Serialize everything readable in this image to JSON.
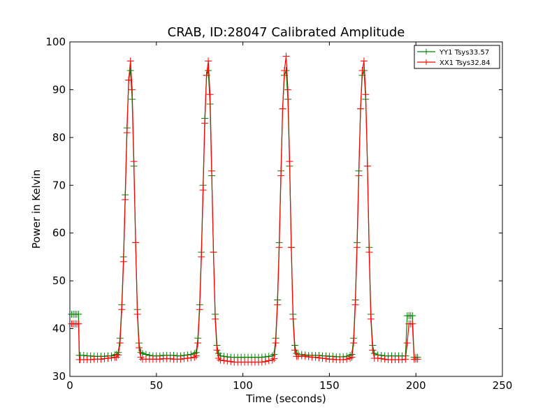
{
  "chart_data": {
    "type": "line",
    "title": "CRAB, ID:28047 Calibrated Amplitude",
    "xlabel": "Time (seconds)",
    "ylabel": "Power in Kelvin",
    "xlim": [
      0,
      250
    ],
    "ylim": [
      30,
      100
    ],
    "xticks": [
      0,
      50,
      100,
      150,
      200,
      250
    ],
    "yticks": [
      30,
      40,
      50,
      60,
      70,
      80,
      90,
      100
    ],
    "grid": false,
    "legend_position": "top-right",
    "marker": "plus",
    "series": [
      {
        "name": "YY1 Tsys33.57",
        "color": "#008000",
        "points": [
          [
            1,
            43
          ],
          [
            2,
            43
          ],
          [
            3,
            43
          ],
          [
            4,
            43
          ],
          [
            5,
            43
          ],
          [
            5.5,
            34.4
          ],
          [
            6,
            34.4
          ],
          [
            8,
            34.4
          ],
          [
            10,
            34.3
          ],
          [
            12,
            34.3
          ],
          [
            14,
            34.2
          ],
          [
            16,
            34.2
          ],
          [
            18,
            34.2
          ],
          [
            20,
            34.2
          ],
          [
            22,
            34.3
          ],
          [
            24,
            34.3
          ],
          [
            26,
            34.5
          ],
          [
            27,
            34.6
          ],
          [
            28,
            35
          ],
          [
            29,
            38
          ],
          [
            30,
            45
          ],
          [
            31,
            55
          ],
          [
            32,
            68
          ],
          [
            33,
            82
          ],
          [
            34,
            92
          ],
          [
            35,
            94
          ],
          [
            36,
            88
          ],
          [
            37,
            74
          ],
          [
            38,
            58
          ],
          [
            39,
            44
          ],
          [
            40,
            37
          ],
          [
            41,
            35
          ],
          [
            42,
            34.8
          ],
          [
            44,
            34.6
          ],
          [
            46,
            34.4
          ],
          [
            48,
            34.3
          ],
          [
            50,
            34.3
          ],
          [
            52,
            34.3
          ],
          [
            54,
            34.4
          ],
          [
            56,
            34.4
          ],
          [
            58,
            34.4
          ],
          [
            60,
            34.4
          ],
          [
            62,
            34.3
          ],
          [
            64,
            34.3
          ],
          [
            66,
            34.4
          ],
          [
            68,
            34.5
          ],
          [
            70,
            34.6
          ],
          [
            72,
            34.8
          ],
          [
            73,
            35
          ],
          [
            74,
            38
          ],
          [
            75,
            45
          ],
          [
            76,
            56
          ],
          [
            77,
            70
          ],
          [
            78,
            84
          ],
          [
            79,
            93
          ],
          [
            80,
            94
          ],
          [
            81,
            87
          ],
          [
            82,
            72
          ],
          [
            83,
            56
          ],
          [
            84,
            43
          ],
          [
            85,
            36.5
          ],
          [
            86,
            34.8
          ],
          [
            87,
            34.3
          ],
          [
            89,
            34.2
          ],
          [
            91,
            34.1
          ],
          [
            93,
            34.0
          ],
          [
            95,
            34.0
          ],
          [
            97,
            34.0
          ],
          [
            99,
            34.0
          ],
          [
            101,
            34.0
          ],
          [
            103,
            34.0
          ],
          [
            105,
            34.0
          ],
          [
            107,
            34.0
          ],
          [
            109,
            34.0
          ],
          [
            111,
            34.0
          ],
          [
            113,
            34.1
          ],
          [
            115,
            34.2
          ],
          [
            117,
            34.3
          ],
          [
            118,
            34.6
          ],
          [
            119,
            38
          ],
          [
            120,
            46
          ],
          [
            121,
            58
          ],
          [
            122,
            73
          ],
          [
            123,
            86
          ],
          [
            124,
            93
          ],
          [
            125,
            94
          ],
          [
            126,
            88
          ],
          [
            127,
            74
          ],
          [
            128,
            57
          ],
          [
            129,
            43
          ],
          [
            130,
            36.5
          ],
          [
            131,
            34.8
          ],
          [
            132,
            34.6
          ],
          [
            134,
            34.6
          ],
          [
            136,
            34.5
          ],
          [
            138,
            34.4
          ],
          [
            140,
            34.4
          ],
          [
            142,
            34.4
          ],
          [
            144,
            34.4
          ],
          [
            146,
            34.3
          ],
          [
            148,
            34.3
          ],
          [
            150,
            34.2
          ],
          [
            152,
            34.2
          ],
          [
            154,
            34.1
          ],
          [
            156,
            34.1
          ],
          [
            158,
            34.1
          ],
          [
            160,
            34.2
          ],
          [
            162,
            34.4
          ],
          [
            163,
            34.6
          ],
          [
            164,
            38
          ],
          [
            165,
            46
          ],
          [
            166,
            58
          ],
          [
            167,
            73
          ],
          [
            168,
            86
          ],
          [
            169,
            93
          ],
          [
            170,
            94
          ],
          [
            171,
            88
          ],
          [
            172,
            74
          ],
          [
            173,
            57
          ],
          [
            174,
            43
          ],
          [
            175,
            36.5
          ],
          [
            176,
            34.8
          ],
          [
            178,
            34.5
          ],
          [
            180,
            34.4
          ],
          [
            182,
            34.3
          ],
          [
            184,
            34.3
          ],
          [
            186,
            34.3
          ],
          [
            188,
            34.3
          ],
          [
            190,
            34.3
          ],
          [
            192,
            34.3
          ],
          [
            194,
            34.3
          ],
          [
            195,
            42.7
          ],
          [
            196,
            42.7
          ],
          [
            197,
            42.7
          ],
          [
            198,
            42.7
          ],
          [
            199,
            34
          ],
          [
            200,
            34
          ],
          [
            201,
            34
          ]
        ]
      },
      {
        "name": "XX1 Tsys32.84",
        "color": "#ff0000",
        "points": [
          [
            1,
            41
          ],
          [
            2,
            41
          ],
          [
            3,
            41
          ],
          [
            4,
            41
          ],
          [
            5,
            41
          ],
          [
            5.5,
            33.5
          ],
          [
            6,
            33.5
          ],
          [
            8,
            33.5
          ],
          [
            10,
            33.5
          ],
          [
            12,
            33.5
          ],
          [
            14,
            33.6
          ],
          [
            16,
            33.6
          ],
          [
            18,
            33.6
          ],
          [
            20,
            33.7
          ],
          [
            22,
            33.8
          ],
          [
            24,
            33.9
          ],
          [
            26,
            34.0
          ],
          [
            27,
            34.0
          ],
          [
            28,
            34.5
          ],
          [
            29,
            37
          ],
          [
            30,
            44
          ],
          [
            31,
            54
          ],
          [
            32,
            67
          ],
          [
            33,
            81
          ],
          [
            34,
            92
          ],
          [
            35,
            96
          ],
          [
            36,
            90
          ],
          [
            37,
            75
          ],
          [
            38,
            58
          ],
          [
            39,
            43
          ],
          [
            40,
            36
          ],
          [
            41,
            34
          ],
          [
            42,
            33.6
          ],
          [
            44,
            33.6
          ],
          [
            46,
            33.6
          ],
          [
            48,
            33.6
          ],
          [
            50,
            33.6
          ],
          [
            52,
            33.6
          ],
          [
            54,
            33.7
          ],
          [
            56,
            33.7
          ],
          [
            58,
            33.7
          ],
          [
            60,
            33.6
          ],
          [
            62,
            33.6
          ],
          [
            64,
            33.6
          ],
          [
            66,
            33.7
          ],
          [
            68,
            33.8
          ],
          [
            70,
            33.9
          ],
          [
            72,
            34.0
          ],
          [
            73,
            34.3
          ],
          [
            74,
            37
          ],
          [
            75,
            44
          ],
          [
            76,
            55
          ],
          [
            77,
            69
          ],
          [
            78,
            83
          ],
          [
            79,
            93
          ],
          [
            80,
            96
          ],
          [
            81,
            89
          ],
          [
            82,
            73
          ],
          [
            83,
            56
          ],
          [
            84,
            42
          ],
          [
            85,
            35.5
          ],
          [
            86,
            33.8
          ],
          [
            87,
            33.4
          ],
          [
            89,
            33.3
          ],
          [
            91,
            33.2
          ],
          [
            93,
            33.1
          ],
          [
            95,
            33.0
          ],
          [
            97,
            33.0
          ],
          [
            99,
            33.0
          ],
          [
            101,
            33.0
          ],
          [
            103,
            33.0
          ],
          [
            105,
            33.0
          ],
          [
            107,
            33.0
          ],
          [
            109,
            33.0
          ],
          [
            111,
            33.0
          ],
          [
            113,
            33.1
          ],
          [
            115,
            33.3
          ],
          [
            117,
            33.4
          ],
          [
            118,
            33.7
          ],
          [
            119,
            37
          ],
          [
            120,
            45
          ],
          [
            121,
            57
          ],
          [
            122,
            72
          ],
          [
            123,
            86
          ],
          [
            124,
            94
          ],
          [
            125,
            97
          ],
          [
            126,
            90
          ],
          [
            127,
            75
          ],
          [
            128,
            57
          ],
          [
            129,
            42
          ],
          [
            130,
            35.5
          ],
          [
            131,
            34.2
          ],
          [
            132,
            34.2
          ],
          [
            134,
            34.3
          ],
          [
            136,
            34.2
          ],
          [
            138,
            34.1
          ],
          [
            140,
            34.0
          ],
          [
            142,
            34.0
          ],
          [
            144,
            33.9
          ],
          [
            146,
            33.8
          ],
          [
            148,
            33.7
          ],
          [
            150,
            33.6
          ],
          [
            152,
            33.6
          ],
          [
            154,
            33.5
          ],
          [
            156,
            33.5
          ],
          [
            158,
            33.5
          ],
          [
            160,
            33.6
          ],
          [
            162,
            33.8
          ],
          [
            163,
            34.0
          ],
          [
            164,
            37
          ],
          [
            165,
            45
          ],
          [
            166,
            57
          ],
          [
            167,
            72
          ],
          [
            168,
            86
          ],
          [
            169,
            94
          ],
          [
            170,
            96
          ],
          [
            171,
            89
          ],
          [
            172,
            74
          ],
          [
            173,
            56
          ],
          [
            174,
            42
          ],
          [
            175,
            35.5
          ],
          [
            176,
            33.8
          ],
          [
            178,
            33.8
          ],
          [
            180,
            33.7
          ],
          [
            182,
            33.6
          ],
          [
            184,
            33.5
          ],
          [
            186,
            33.5
          ],
          [
            188,
            33.5
          ],
          [
            190,
            33.5
          ],
          [
            192,
            33.5
          ],
          [
            194,
            33.6
          ],
          [
            195,
            37
          ],
          [
            196,
            41
          ],
          [
            197,
            41
          ],
          [
            198,
            41
          ],
          [
            199,
            33.6
          ],
          [
            200,
            33.6
          ],
          [
            201,
            33.6
          ]
        ]
      }
    ]
  }
}
